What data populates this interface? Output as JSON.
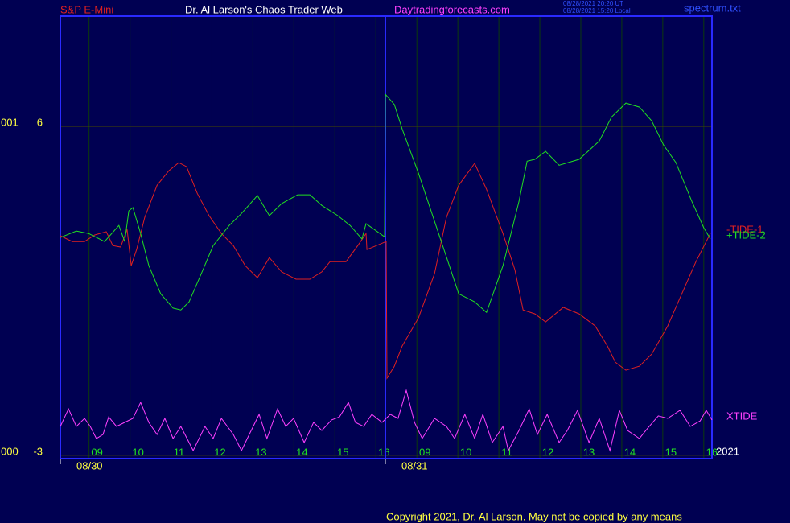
{
  "header": {
    "symbol": "S&P E-Mini",
    "site": "Dr. Al Larson's Chaos Trader Web",
    "url": "Daytradingforecasts.com",
    "time_ut": "08/28/2021 20:20 UT",
    "time_local": "08/28/2021 15:20 Local",
    "file": "spectrum.txt"
  },
  "footer": {
    "copyright": "Copyright 2021, Dr. Al Larson. May not be copied by any means",
    "year": "2021"
  },
  "chart_data": {
    "type": "line",
    "left_labels": [
      {
        "value": 6,
        "label": "001"
      },
      {
        "value": -3,
        "label": "000"
      }
    ],
    "xlim": [
      8.3,
      24.2
    ],
    "ylim": [
      -3.09,
      9.02
    ],
    "yticks": [
      6,
      -3
    ],
    "grid": true,
    "xticks": [
      {
        "value": 9,
        "label": "09"
      },
      10,
      11,
      12,
      13,
      14,
      15,
      16,
      {
        "value": 17,
        "label": "09"
      },
      {
        "value": 18,
        "label": "10"
      },
      {
        "value": 19,
        "label": "11"
      },
      {
        "value": 20,
        "label": "12"
      },
      {
        "value": 21,
        "label": "13"
      },
      {
        "value": 22,
        "label": "14"
      },
      {
        "value": 23,
        "label": "15"
      },
      {
        "value": 24,
        "label": "16"
      }
    ],
    "date_labels": [
      {
        "value": 8.3,
        "label": "08/30"
      },
      {
        "value": 16.23,
        "label": "08/31"
      }
    ],
    "series": [
      {
        "name": "-TIDE-1",
        "color": "#e02020",
        "x": [
          8.3,
          8.59,
          8.89,
          9.14,
          9.42,
          9.58,
          9.77,
          9.93,
          10.03,
          10.16,
          10.36,
          10.66,
          10.95,
          11.19,
          11.38,
          11.64,
          11.93,
          12.23,
          12.52,
          12.81,
          13.11,
          13.4,
          13.7,
          14.05,
          14.39,
          14.68,
          14.88,
          15.27,
          15.56,
          15.76,
          15.78,
          16.25,
          16.27,
          16.45,
          16.64,
          17.04,
          17.43,
          17.72,
          18.02,
          18.41,
          18.7,
          19.1,
          19.39,
          19.59,
          19.88,
          20.14,
          20.57,
          20.96,
          21.35,
          21.65,
          21.84,
          22.1,
          22.43,
          22.73,
          23.12,
          23.42,
          23.81,
          24.16
        ],
        "values": [
          3.01,
          2.85,
          2.85,
          3.03,
          3.12,
          2.74,
          2.7,
          3.18,
          2.19,
          2.63,
          3.51,
          4.39,
          4.79,
          5.01,
          4.9,
          4.17,
          3.56,
          3.07,
          2.74,
          2.19,
          1.86,
          2.41,
          2.02,
          1.82,
          1.82,
          2.02,
          2.3,
          2.3,
          2.74,
          3.07,
          2.63,
          2.85,
          -0.89,
          -0.56,
          -0.01,
          0.76,
          1.97,
          3.51,
          4.39,
          4.99,
          4.28,
          3.07,
          2.08,
          0.98,
          0.87,
          0.65,
          1.05,
          0.87,
          0.54,
          -0.01,
          -0.45,
          -0.67,
          -0.56,
          -0.23,
          0.54,
          1.31,
          2.3,
          3.07
        ]
      },
      {
        "name": "+TIDE-2",
        "color": "#20e020",
        "x": [
          8.3,
          8.69,
          8.99,
          9.38,
          9.73,
          9.87,
          9.97,
          10.07,
          10.26,
          10.46,
          10.75,
          11.05,
          11.24,
          11.44,
          11.74,
          12.03,
          12.42,
          12.72,
          13.11,
          13.4,
          13.7,
          14.09,
          14.39,
          14.68,
          15.07,
          15.37,
          15.66,
          15.76,
          16.21,
          16.23,
          16.45,
          16.64,
          17.04,
          17.53,
          18.02,
          18.41,
          18.7,
          19.1,
          19.49,
          19.69,
          19.88,
          20.14,
          20.47,
          20.96,
          21.45,
          21.75,
          22.1,
          22.43,
          22.73,
          23.02,
          23.32,
          23.71,
          24.0,
          24.16
        ],
        "values": [
          2.96,
          3.14,
          3.07,
          2.85,
          3.29,
          2.85,
          3.69,
          3.78,
          3.07,
          2.19,
          1.42,
          1.03,
          0.98,
          1.2,
          1.97,
          2.74,
          3.29,
          3.62,
          4.11,
          3.56,
          3.89,
          4.13,
          4.13,
          3.84,
          3.56,
          3.29,
          2.92,
          3.34,
          2.98,
          6.88,
          6.6,
          5.93,
          4.72,
          3.07,
          1.42,
          1.2,
          0.91,
          2.19,
          3.95,
          5.05,
          5.1,
          5.32,
          4.94,
          5.1,
          5.6,
          6.26,
          6.64,
          6.53,
          6.15,
          5.49,
          5.01,
          3.95,
          3.23,
          2.92
        ]
      },
      {
        "name": "XTIDE",
        "color": "#ff40ff",
        "x": [
          8.3,
          8.5,
          8.69,
          8.89,
          9.03,
          9.18,
          9.34,
          9.48,
          9.67,
          9.87,
          10.07,
          10.26,
          10.46,
          10.66,
          10.85,
          11.05,
          11.24,
          11.54,
          11.83,
          12.03,
          12.23,
          12.52,
          12.72,
          12.91,
          13.15,
          13.34,
          13.6,
          13.8,
          13.99,
          14.25,
          14.48,
          14.68,
          14.92,
          15.11,
          15.33,
          15.5,
          15.7,
          15.9,
          16.15,
          16.35,
          16.54,
          16.74,
          16.94,
          17.13,
          17.43,
          17.72,
          17.92,
          18.17,
          18.41,
          18.61,
          18.84,
          19.1,
          19.23,
          19.49,
          19.74,
          19.94,
          20.18,
          20.47,
          20.67,
          20.92,
          21.2,
          21.45,
          21.71,
          21.94,
          22.14,
          22.43,
          22.63,
          22.89,
          23.12,
          23.42,
          23.67,
          23.91,
          24.06,
          24.2
        ],
        "values": [
          -2.21,
          -1.73,
          -2.21,
          -1.99,
          -2.21,
          -2.54,
          -2.43,
          -1.95,
          -2.21,
          -2.1,
          -1.99,
          -1.55,
          -2.1,
          -2.43,
          -1.99,
          -2.54,
          -2.21,
          -2.87,
          -2.21,
          -2.54,
          -1.99,
          -2.43,
          -2.87,
          -2.43,
          -1.88,
          -2.54,
          -1.73,
          -2.21,
          -1.99,
          -2.65,
          -2.1,
          -2.32,
          -2.03,
          -1.95,
          -1.55,
          -2.1,
          -2.21,
          -1.88,
          -2.1,
          -1.88,
          -1.99,
          -1.22,
          -2.1,
          -2.54,
          -1.99,
          -2.21,
          -2.54,
          -1.88,
          -2.54,
          -1.88,
          -2.65,
          -2.21,
          -2.87,
          -2.32,
          -1.73,
          -2.43,
          -1.88,
          -2.65,
          -2.32,
          -1.77,
          -2.65,
          -1.99,
          -2.87,
          -1.77,
          -2.32,
          -2.54,
          -2.26,
          -1.92,
          -1.99,
          -1.77,
          -2.21,
          -2.06,
          -1.77,
          -2.03
        ]
      }
    ]
  }
}
